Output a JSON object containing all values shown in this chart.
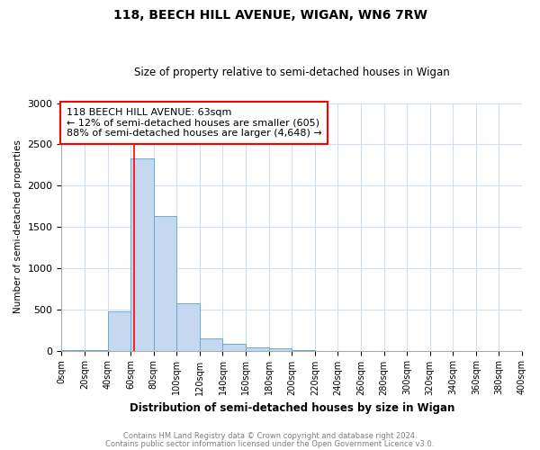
{
  "title1": "118, BEECH HILL AVENUE, WIGAN, WN6 7RW",
  "title2": "Size of property relative to semi-detached houses in Wigan",
  "xlabel": "Distribution of semi-detached houses by size in Wigan",
  "ylabel": "Number of semi-detached properties",
  "bin_edges": [
    0,
    20,
    40,
    60,
    80,
    100,
    120,
    140,
    160,
    180,
    200,
    220,
    240,
    260,
    280,
    300,
    320,
    340,
    360,
    380,
    400
  ],
  "bin_values": [
    10,
    10,
    470,
    2330,
    1630,
    570,
    150,
    80,
    40,
    30,
    10,
    0,
    0,
    0,
    0,
    0,
    0,
    0,
    0,
    0
  ],
  "bar_color": "#c5d8f0",
  "bar_edge_color": "#6aaad4",
  "red_line_x": 63,
  "annotation_text": "118 BEECH HILL AVENUE: 63sqm\n← 12% of semi-detached houses are smaller (605)\n88% of semi-detached houses are larger (4,648) →",
  "annotation_box_color": "white",
  "annotation_box_edge_color": "red",
  "ylim": [
    0,
    3000
  ],
  "yticks": [
    0,
    500,
    1000,
    1500,
    2000,
    2500,
    3000
  ],
  "footer1": "Contains HM Land Registry data © Crown copyright and database right 2024.",
  "footer2": "Contains public sector information licensed under the Open Government Licence v3.0.",
  "bg_color": "#ffffff",
  "grid_color": "#d0dff0"
}
